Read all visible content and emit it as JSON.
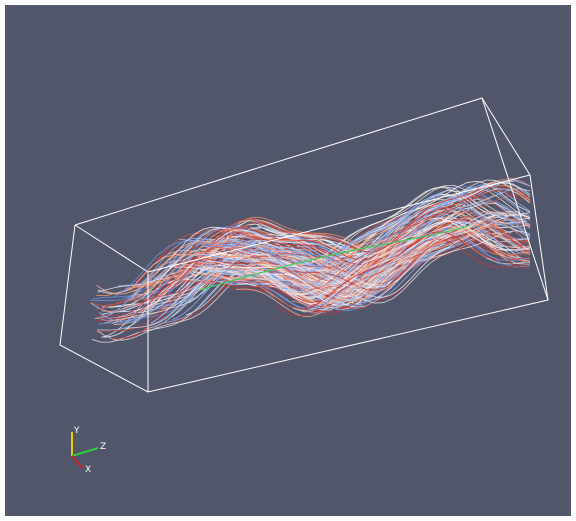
{
  "orientation_axes": {
    "y_label": "Y",
    "z_label": "Z",
    "x_label": "X"
  }
}
